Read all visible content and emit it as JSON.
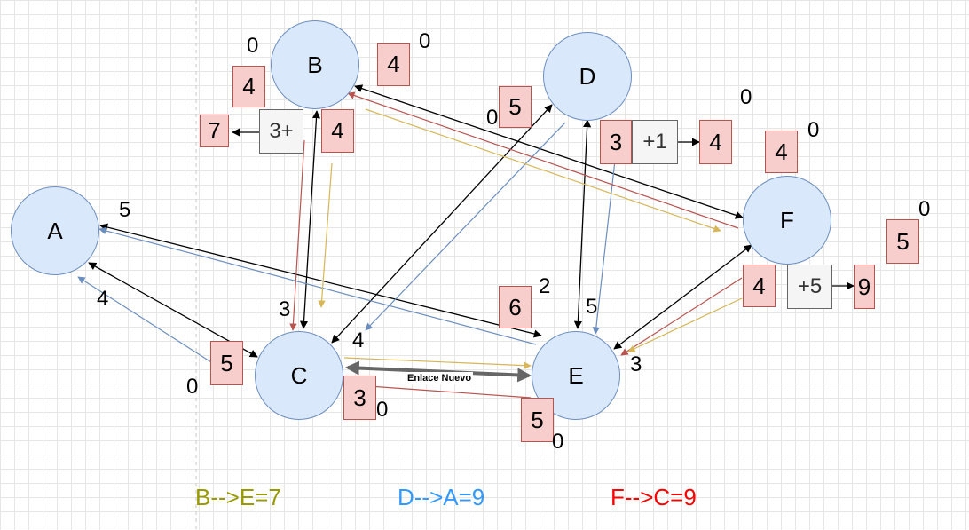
{
  "nodes": {
    "A": "A",
    "B": "B",
    "C": "C",
    "D": "D",
    "E": "E",
    "F": "F"
  },
  "red_boxes": {
    "b_left": "4",
    "b_right": "4",
    "b_lower": "4",
    "b_result": "7",
    "d_left": "5",
    "d_main": "3",
    "d_result": "4",
    "f_top": "4",
    "f_right": "5",
    "f_lower": "4",
    "f_result": "9",
    "c_left": "5",
    "c_bottom": "3",
    "e_left": "6",
    "e_bottom": "5"
  },
  "gray_boxes": {
    "b_op": "3+",
    "d_op": "+1",
    "f_op": "+5"
  },
  "numbers": {
    "b_top_left": "0",
    "b_top_right": "0",
    "d_left": "0",
    "d_right": "0",
    "f_top": "0",
    "f_right": "0",
    "a_right": "5",
    "a_lower": "4",
    "c_lower_left": "0",
    "c_top_left": "3",
    "c_top_right": "4",
    "c_bottom": "0",
    "e_top_left": "5",
    "e_top_right": "2",
    "e_right": "3",
    "e_bottom": "0"
  },
  "edge_label": "Enlace Nuevo",
  "legend": {
    "items": [
      {
        "text": "B-->E=7",
        "color": "#999900"
      },
      {
        "text": "D-->A=9",
        "color": "#3399ff"
      },
      {
        "text": "F-->C=9",
        "color": "#ff0000"
      }
    ]
  },
  "colors": {
    "node_fill": "#dae8fc",
    "node_stroke": "#6c8ebf",
    "red_fill": "#f8cecc",
    "red_stroke": "#b85450",
    "gray_fill": "#f5f5f5",
    "gray_stroke": "#666666",
    "edge_black": "#000000",
    "edge_blue": "#6c8ebf",
    "edge_red": "#b85450",
    "edge_yellow": "#d6b656",
    "edge_new": "#666666"
  }
}
